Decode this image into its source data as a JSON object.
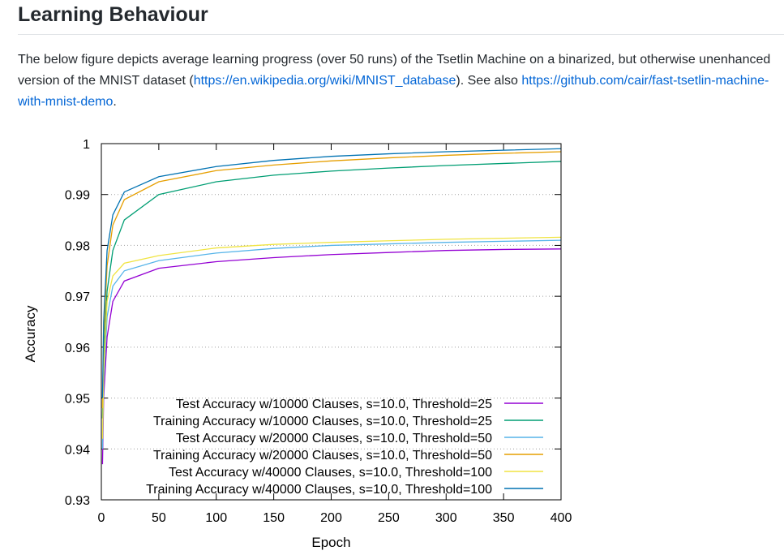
{
  "heading": "Learning Behaviour",
  "paragraph": {
    "text_1": "The below figure depicts average learning progress (over 50 runs) of the Tsetlin Machine on a binarized, but otherwise unenhanced version of the MNIST dataset (",
    "link_1": "https://en.wikipedia.org/wiki/MNIST_database",
    "text_2": "). See also ",
    "link_2": "https://github.com/cair/fast-tsetlin-machine-with-mnist-demo",
    "text_3": "."
  },
  "colors": {
    "link": "#0366d6",
    "text": "#24292e"
  },
  "chart_data": {
    "type": "line",
    "xlabel": "Epoch",
    "ylabel": "Accuracy",
    "xlim": [
      0,
      400
    ],
    "ylim": [
      0.93,
      1.0
    ],
    "x_ticks": [
      0,
      50,
      100,
      150,
      200,
      250,
      300,
      350,
      400
    ],
    "y_ticks": [
      0.93,
      0.94,
      0.95,
      0.96,
      0.97,
      0.98,
      0.99,
      1.0
    ],
    "x_tick_labels": [
      "0",
      "50",
      "100",
      "150",
      "200",
      "250",
      "300",
      "350",
      "400"
    ],
    "y_tick_labels": [
      "0.93",
      "0.94",
      "0.95",
      "0.96",
      "0.97",
      "0.98",
      "0.99",
      "1"
    ],
    "grid": "horizontal dotted",
    "legend_position": "bottom-right",
    "series": [
      {
        "name": "Test Accuracy w/10000 Clauses, s=10.0, Threshold=25",
        "color": "#9400d3",
        "x": [
          1,
          2,
          5,
          10,
          20,
          50,
          100,
          150,
          200,
          250,
          300,
          350,
          400
        ],
        "y": [
          0.937,
          0.95,
          0.962,
          0.969,
          0.973,
          0.9755,
          0.9768,
          0.9776,
          0.9782,
          0.9786,
          0.979,
          0.9792,
          0.9793
        ]
      },
      {
        "name": "Training Accuracy w/10000 Clauses, s=10.0, Threshold=25",
        "color": "#009e73",
        "x": [
          1,
          2,
          5,
          10,
          20,
          50,
          100,
          150,
          200,
          250,
          300,
          350,
          400
        ],
        "y": [
          0.946,
          0.958,
          0.971,
          0.979,
          0.985,
          0.99,
          0.9925,
          0.9938,
          0.9946,
          0.9952,
          0.9957,
          0.9961,
          0.9965
        ]
      },
      {
        "name": "Test Accuracy w/20000 Clauses, s=10.0, Threshold=50",
        "color": "#56b4e9",
        "x": [
          1,
          2,
          5,
          10,
          20,
          50,
          100,
          150,
          200,
          250,
          300,
          350,
          400
        ],
        "y": [
          0.94,
          0.953,
          0.966,
          0.972,
          0.975,
          0.977,
          0.9785,
          0.9794,
          0.98,
          0.9803,
          0.9806,
          0.9808,
          0.981
        ]
      },
      {
        "name": "Training Accuracy w/20000 Clauses, s=10.0, Threshold=50",
        "color": "#e69f00",
        "x": [
          1,
          2,
          5,
          10,
          20,
          50,
          100,
          150,
          200,
          250,
          300,
          350,
          400
        ],
        "y": [
          0.948,
          0.962,
          0.976,
          0.984,
          0.989,
          0.9925,
          0.9947,
          0.9958,
          0.9966,
          0.9972,
          0.9977,
          0.9981,
          0.9984
        ]
      },
      {
        "name": "Test Accuracy w/40000 Clauses, s=10.0, Threshold=100",
        "color": "#f0e442",
        "x": [
          1,
          2,
          5,
          10,
          20,
          50,
          100,
          150,
          200,
          250,
          300,
          350,
          400
        ],
        "y": [
          0.942,
          0.955,
          0.969,
          0.974,
          0.9765,
          0.978,
          0.9795,
          0.9802,
          0.9806,
          0.9809,
          0.9812,
          0.9814,
          0.9816
        ]
      },
      {
        "name": "Training Accuracy w/40000 Clauses, s=10.0, Threshold=100",
        "color": "#0072b2",
        "x": [
          1,
          2,
          5,
          10,
          20,
          50,
          100,
          150,
          200,
          250,
          300,
          350,
          400
        ],
        "y": [
          0.95,
          0.965,
          0.979,
          0.986,
          0.9905,
          0.9935,
          0.9955,
          0.9967,
          0.9975,
          0.998,
          0.9984,
          0.9987,
          0.999
        ]
      }
    ]
  }
}
